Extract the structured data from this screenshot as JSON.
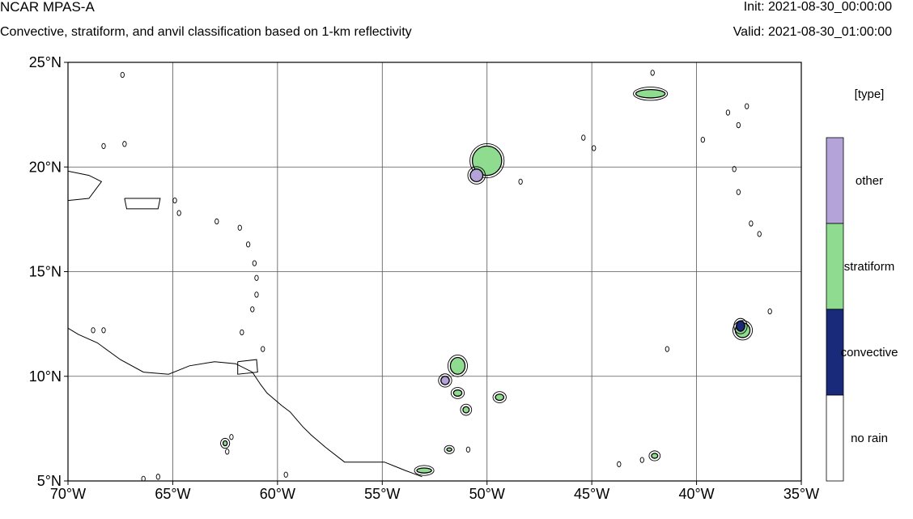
{
  "header": {
    "title": "NCAR MPAS-A",
    "subtitle": "Convective, stratiform, and anvil classification based on 1-km reflectivity",
    "init": "Init: 2021-08-30_00:00:00",
    "valid": "Valid: 2021-08-30_01:00:00"
  },
  "map": {
    "lon_range": [
      -70,
      -35
    ],
    "lat_range": [
      5,
      25
    ],
    "lon_ticks": [
      {
        "value": -70,
        "label": "70°W"
      },
      {
        "value": -65,
        "label": "65°W"
      },
      {
        "value": -60,
        "label": "60°W"
      },
      {
        "value": -55,
        "label": "55°W"
      },
      {
        "value": -50,
        "label": "50°W"
      },
      {
        "value": -45,
        "label": "45°W"
      },
      {
        "value": -40,
        "label": "40°W"
      },
      {
        "value": -35,
        "label": "35°W"
      }
    ],
    "lat_ticks": [
      {
        "value": 25,
        "label": "25°N"
      },
      {
        "value": 20,
        "label": "20°N"
      },
      {
        "value": 15,
        "label": "15°N"
      },
      {
        "value": 10,
        "label": "10°N"
      },
      {
        "value": 5,
        "label": "5°N"
      }
    ],
    "gridlines": true
  },
  "legend": {
    "title": "[type]",
    "categories": [
      {
        "label": "other",
        "color": "#b3a3d9"
      },
      {
        "label": "stratiform",
        "color": "#8fdc90"
      },
      {
        "label": "convective",
        "color": "#1a2a7a"
      },
      {
        "label": "no rain",
        "color": "#ffffff"
      }
    ]
  },
  "features": {
    "land": [
      {
        "name": "south-america-coast",
        "points": [
          [
            -70,
            12.3
          ],
          [
            -69.5,
            12.0
          ],
          [
            -68.6,
            11.6
          ],
          [
            -67.5,
            10.8
          ],
          [
            -66.4,
            10.2
          ],
          [
            -65.2,
            10.1
          ],
          [
            -64.2,
            10.5
          ],
          [
            -63.0,
            10.7
          ],
          [
            -62.0,
            10.6
          ],
          [
            -61.2,
            10.2
          ],
          [
            -60.8,
            9.6
          ],
          [
            -60.5,
            9.2
          ],
          [
            -59.8,
            8.6
          ],
          [
            -59.4,
            8.3
          ],
          [
            -58.8,
            7.6
          ],
          [
            -58.4,
            7.2
          ],
          [
            -57.7,
            6.6
          ],
          [
            -56.8,
            5.9
          ],
          [
            -55.8,
            5.9
          ],
          [
            -54.9,
            5.9
          ],
          [
            -54.4,
            5.7
          ],
          [
            -53.9,
            5.5
          ],
          [
            -53.1,
            5.2
          ]
        ]
      },
      {
        "name": "trinidad",
        "points": [
          [
            -61.9,
            10.7
          ],
          [
            -61.0,
            10.8
          ],
          [
            -60.95,
            10.2
          ],
          [
            -61.9,
            10.1
          ],
          [
            -61.9,
            10.7
          ]
        ]
      },
      {
        "name": "hispaniola",
        "points": [
          [
            -70,
            19.8
          ],
          [
            -69.0,
            19.6
          ],
          [
            -68.4,
            19.3
          ],
          [
            -69.0,
            18.5
          ],
          [
            -70,
            18.4
          ]
        ]
      },
      {
        "name": "puerto-rico",
        "points": [
          [
            -67.3,
            18.5
          ],
          [
            -65.6,
            18.5
          ],
          [
            -65.7,
            18.0
          ],
          [
            -67.2,
            18.0
          ],
          [
            -67.3,
            18.5
          ]
        ]
      }
    ],
    "islands": [
      [
        -61.8,
        17.1
      ],
      [
        -61.4,
        16.3
      ],
      [
        -61.1,
        15.4
      ],
      [
        -61.0,
        14.7
      ],
      [
        -61.0,
        13.9
      ],
      [
        -61.2,
        13.2
      ],
      [
        -61.7,
        12.1
      ],
      [
        -60.7,
        11.3
      ],
      [
        -62.2,
        7.1
      ],
      [
        -62.4,
        6.4
      ],
      [
        -67.4,
        24.4
      ],
      [
        -68.3,
        21.0
      ],
      [
        -67.3,
        21.1
      ],
      [
        -64.9,
        18.4
      ],
      [
        -64.7,
        17.8
      ],
      [
        -62.9,
        17.4
      ],
      [
        -68.8,
        12.2
      ],
      [
        -68.3,
        12.2
      ],
      [
        -37.6,
        22.9
      ],
      [
        -38.5,
        22.6
      ],
      [
        -38.0,
        22.0
      ],
      [
        -38.2,
        19.9
      ],
      [
        -39.7,
        21.3
      ],
      [
        -44.9,
        20.9
      ],
      [
        -45.4,
        21.4
      ],
      [
        -48.4,
        19.3
      ],
      [
        -37.4,
        17.3
      ],
      [
        -37.0,
        16.8
      ],
      [
        -38.0,
        18.8
      ],
      [
        -36.5,
        13.1
      ],
      [
        -41.4,
        11.3
      ],
      [
        -42.1,
        24.5
      ],
      [
        -43.7,
        5.8
      ],
      [
        -42.6,
        6.0
      ],
      [
        -50.9,
        6.5
      ],
      [
        -59.6,
        5.3
      ],
      [
        -66.4,
        5.1
      ],
      [
        -65.7,
        5.2
      ]
    ]
  },
  "precip_cells": [
    {
      "id": "cell-50w-20n",
      "lon": -50.0,
      "lat": 20.3,
      "rx": 0.7,
      "ry": 0.7,
      "type": "stratiform"
    },
    {
      "id": "cell-50.5w-19.6n",
      "lon": -50.5,
      "lat": 19.6,
      "rx": 0.3,
      "ry": 0.3,
      "type": "other"
    },
    {
      "id": "cell-42w-23.5n",
      "lon": -42.2,
      "lat": 23.5,
      "rx": 0.7,
      "ry": 0.2,
      "type": "stratiform"
    },
    {
      "id": "cell-38w-12n",
      "lon": -37.8,
      "lat": 12.2,
      "rx": 0.35,
      "ry": 0.35,
      "type": "stratiform"
    },
    {
      "id": "cell-38w-12.4n",
      "lon": -37.9,
      "lat": 12.4,
      "rx": 0.2,
      "ry": 0.25,
      "type": "convective"
    },
    {
      "id": "cell-51.5w-10.5n",
      "lon": -51.4,
      "lat": 10.5,
      "rx": 0.35,
      "ry": 0.4,
      "type": "stratiform"
    },
    {
      "id": "cell-52w-9.8n",
      "lon": -52.0,
      "lat": 9.8,
      "rx": 0.2,
      "ry": 0.2,
      "type": "other"
    },
    {
      "id": "cell-51.5w-9.2n",
      "lon": -51.4,
      "lat": 9.2,
      "rx": 0.2,
      "ry": 0.15,
      "type": "stratiform"
    },
    {
      "id": "cell-51w-8.4n",
      "lon": -51.0,
      "lat": 8.4,
      "rx": 0.15,
      "ry": 0.15,
      "type": "stratiform"
    },
    {
      "id": "cell-49.5w-9n",
      "lon": -49.4,
      "lat": 9.0,
      "rx": 0.2,
      "ry": 0.15,
      "type": "stratiform"
    },
    {
      "id": "cell-53w-5.5n",
      "lon": -53.0,
      "lat": 5.5,
      "rx": 0.35,
      "ry": 0.12,
      "type": "stratiform"
    },
    {
      "id": "cell-51.8w-6.5n",
      "lon": -51.8,
      "lat": 6.5,
      "rx": 0.12,
      "ry": 0.08,
      "type": "stratiform"
    },
    {
      "id": "cell-62.5w-6.8n",
      "lon": -62.5,
      "lat": 6.8,
      "rx": 0.1,
      "ry": 0.12,
      "type": "stratiform"
    },
    {
      "id": "cell-42w-6.2n",
      "lon": -42.0,
      "lat": 6.2,
      "rx": 0.15,
      "ry": 0.12,
      "type": "stratiform"
    }
  ]
}
